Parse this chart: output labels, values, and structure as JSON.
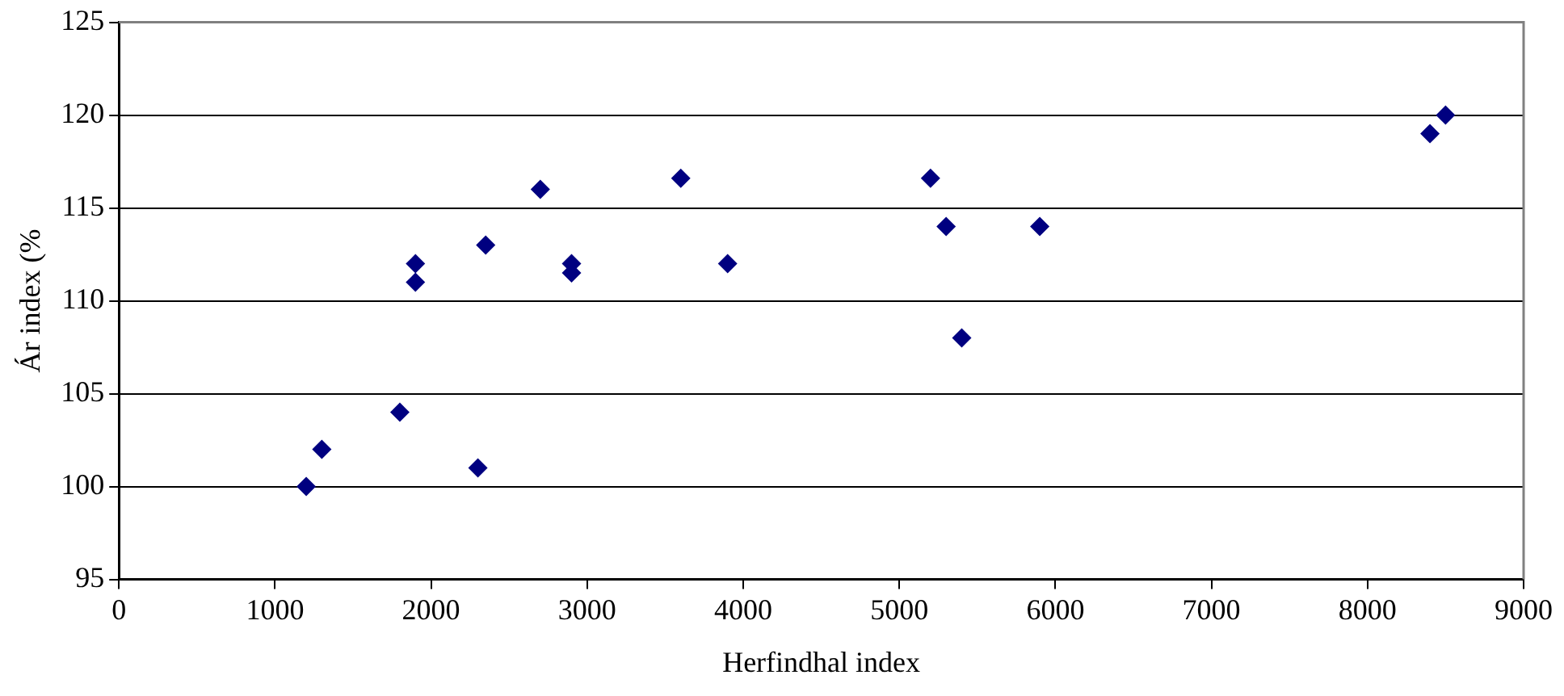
{
  "chart_data": {
    "type": "scatter",
    "xlabel": "Herfindhal index",
    "ylabel": "Ár index (%",
    "series": [
      {
        "color": "#000080",
        "x": [
          1200,
          1300,
          1800,
          1900,
          1900,
          2300,
          2350,
          2700,
          2900,
          2900,
          3600,
          3900,
          5200,
          5300,
          5400,
          5900,
          8400,
          8500
        ],
        "values": [
          100,
          102,
          104,
          112,
          111,
          101,
          113,
          116,
          112,
          111.5,
          116.6,
          112,
          116.6,
          114,
          108,
          114,
          119,
          120
        ]
      }
    ],
    "xlim": [
      0,
      9000
    ],
    "xticks": [
      0,
      1000,
      2000,
      3000,
      4000,
      5000,
      6000,
      7000,
      8000,
      9000
    ],
    "ylim": [
      95,
      125
    ],
    "yticks": [
      95,
      100,
      105,
      110,
      115,
      120,
      125
    ],
    "grid": "y",
    "legend": false,
    "marker": "diamond"
  }
}
